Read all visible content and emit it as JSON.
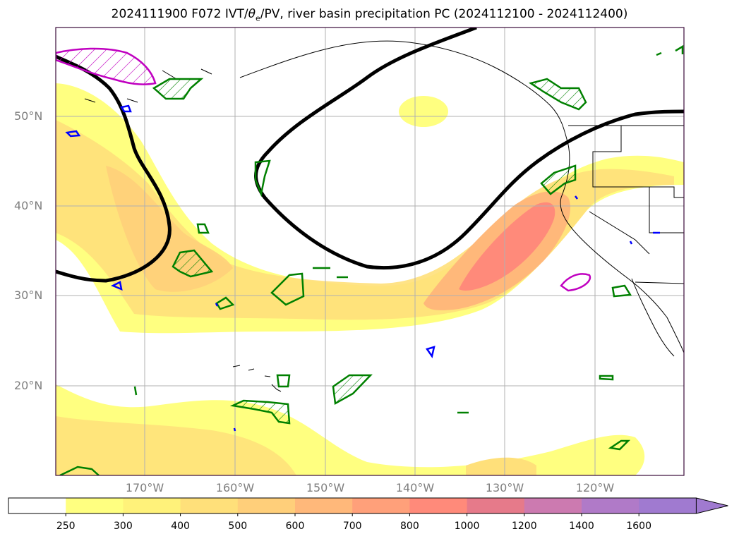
{
  "title_prefix": "2024111900 F072 IVT/",
  "title_theta": "θ",
  "title_theta_sub": "e",
  "title_suffix": "/PV, river basin precipitation PC (2024112100 - 2024112400)",
  "lat_labels": [
    "50°N",
    "40°N",
    "30°N",
    "20°N"
  ],
  "lon_labels": [
    "170°W",
    "160°W",
    "150°W",
    "140°W",
    "130°W",
    "120°W"
  ],
  "colorbar": {
    "ticks": [
      "250",
      "300",
      "400",
      "500",
      "600",
      "700",
      "800",
      "1000",
      "1200",
      "1400",
      "1600"
    ],
    "colors": [
      "#ffffff",
      "#ffff80",
      "#fff27a",
      "#ffe07a",
      "#ffcf7a",
      "#ffb87a",
      "#ffa07a",
      "#ff8a7a",
      "#e67a8a",
      "#cc7ab0",
      "#b07ac8",
      "#a07ad0"
    ]
  },
  "legend_colors": {
    "ivt_fill_low": "#ffff80",
    "ivt_fill_mid": "#ffd98a",
    "ivt_fill_high": "#ff8a7a",
    "pv_contour": "#000000",
    "theta_contour_green": "#008000",
    "precip_blue": "#0000ff",
    "precip_magenta": "#c000c0"
  }
}
